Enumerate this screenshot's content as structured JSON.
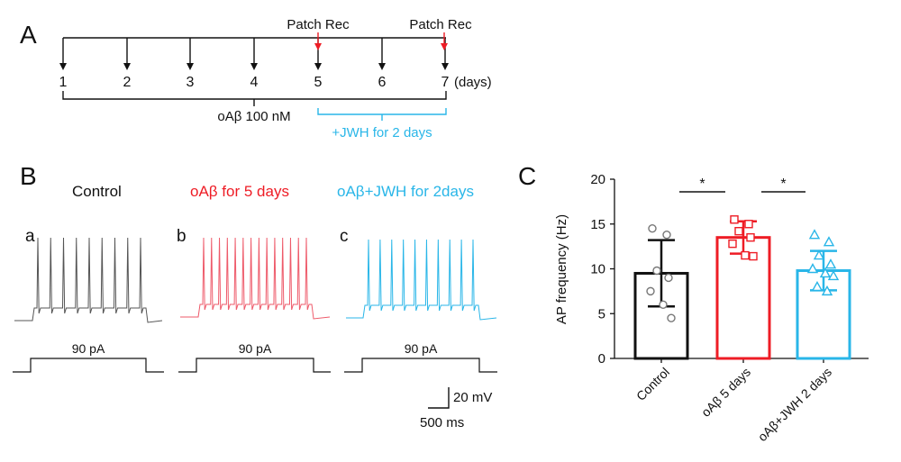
{
  "panel_a": {
    "letter": "A",
    "patch_label": "Patch Rec",
    "days": [
      "1",
      "2",
      "3",
      "4",
      "5",
      "6",
      "7"
    ],
    "days_unit": "(days)",
    "treatment_label": "oAβ 100 nM",
    "jwh_label": "+JWH for 2 days",
    "colors": {
      "black": "#111111",
      "red": "#ee1c25",
      "cyan": "#29b6e8"
    }
  },
  "panel_b": {
    "letter": "B",
    "traces": [
      {
        "letter": "a",
        "title": "Control",
        "color": "#555555",
        "title_color": "#111111",
        "spikes": 9,
        "stim_label": "90 pA"
      },
      {
        "letter": "b",
        "title": "oAβ for 5 days",
        "color": "#ee5a6a",
        "title_color": "#ee1c25",
        "spikes": 14,
        "stim_label": "90 pA"
      },
      {
        "letter": "c",
        "title": "oAβ+JWH for 2days",
        "color": "#29b6e8",
        "title_color": "#29b6e8",
        "spikes": 10,
        "stim_label": "90 pA"
      }
    ],
    "scalebar": {
      "voltage": "20 mV",
      "time": "500 ms"
    }
  },
  "panel_c": {
    "letter": "C",
    "chart_data": {
      "type": "bar",
      "categories": [
        "Control",
        "oAβ 5 days",
        "oAβ+JWH 2 days"
      ],
      "ylabel": "AP frequency (Hz)",
      "xlabel": "",
      "ylim": [
        0,
        20
      ],
      "yticks": [
        0,
        5,
        10,
        15,
        20
      ],
      "values": [
        9.5,
        13.5,
        9.8
      ],
      "errors": [
        3.7,
        1.8,
        2.2
      ],
      "colors": [
        "#111111",
        "#ee1c25",
        "#29b6e8"
      ],
      "markers": [
        "circle",
        "square",
        "triangle"
      ],
      "points": [
        [
          14.5,
          13.8,
          9.8,
          9.0,
          7.5,
          6.0,
          4.5
        ],
        [
          15.5,
          15.0,
          14.2,
          13.5,
          12.8,
          11.5,
          11.4
        ],
        [
          13.8,
          13.0,
          11.5,
          10.5,
          10.0,
          9.5,
          9.2,
          8.0,
          7.5
        ]
      ],
      "significance": [
        {
          "from": 0,
          "to": 1,
          "label": "*"
        },
        {
          "from": 1,
          "to": 2,
          "label": "*"
        }
      ]
    }
  }
}
